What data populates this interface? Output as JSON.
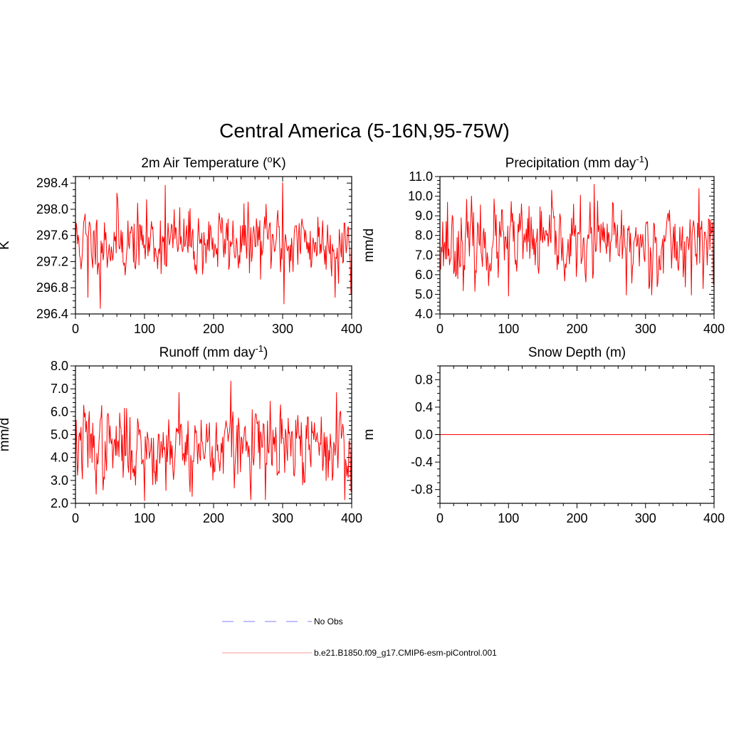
{
  "title": "Central America (5-16N,95-75W)",
  "line_color": "#ff0000",
  "obs_color": "#9999ff",
  "chart_data": [
    {
      "id": "temp",
      "type": "line",
      "title": "2m Air Temperature (",
      "title_sup": "o",
      "title_after": "K)",
      "ylabel": "K",
      "xlim": [
        0,
        400
      ],
      "ylim": [
        296.4,
        298.5
      ],
      "xticks": [
        0,
        100,
        200,
        300,
        400
      ],
      "yticks": [
        296.4,
        296.8,
        297.2,
        297.6,
        298.0,
        298.4
      ],
      "ytick_labels": [
        "296.4",
        "296.8",
        "297.2",
        "297.6",
        "298.0",
        "298.4"
      ],
      "yminor_step": 0.1,
      "seed": 11,
      "series": [
        {
          "name": "b.e21.B1850.f09_g17.CMIP6-esm-piControl.001",
          "mean": 297.5,
          "sd": 0.26,
          "min": 296.48,
          "max": 298.41,
          "peaks": [
            [
              36,
              296.48
            ],
            [
              130,
              298.37
            ],
            [
              300,
              298.41
            ],
            [
              302,
              296.55
            ],
            [
              18,
              296.65
            ],
            [
              376,
              296.65
            ],
            [
              399,
              296.7
            ],
            [
              60,
              298.25
            ]
          ]
        }
      ]
    },
    {
      "id": "precip",
      "type": "line",
      "title": "Precipitation (mm day",
      "title_sup": "-1",
      "title_after": ")",
      "ylabel": "mm/d",
      "xlim": [
        0,
        400
      ],
      "ylim": [
        4.0,
        11.0
      ],
      "xticks": [
        0,
        100,
        200,
        300,
        400
      ],
      "yticks": [
        4.0,
        5.0,
        6.0,
        7.0,
        8.0,
        9.0,
        10.0,
        11.0
      ],
      "ytick_labels": [
        "4.0",
        "5.0",
        "6.0",
        "7.0",
        "8.0",
        "9.0",
        "10.0",
        "11.0"
      ],
      "yminor_step": 0.2,
      "seed": 23,
      "series": [
        {
          "name": "b.e21.B1850.f09_g17.CMIP6-esm-piControl.001",
          "mean": 7.55,
          "sd": 0.95,
          "min": 4.9,
          "max": 10.62,
          "peaks": [
            [
              100,
              4.9
            ],
            [
              225,
              10.62
            ],
            [
              272,
              4.95
            ],
            [
              378,
              10.4
            ],
            [
              399,
              5.5
            ],
            [
              11,
              9.7
            ],
            [
              130,
              9.5
            ]
          ]
        }
      ]
    },
    {
      "id": "runoff",
      "type": "line",
      "title": "Runoff (mm day",
      "title_sup": "-1",
      "title_after": ")",
      "ylabel": "mm/d",
      "xlim": [
        0,
        400
      ],
      "ylim": [
        2.0,
        8.0
      ],
      "xticks": [
        0,
        100,
        200,
        300,
        400
      ],
      "yticks": [
        2.0,
        3.0,
        4.0,
        5.0,
        6.0,
        7.0,
        8.0
      ],
      "ytick_labels": [
        "2.0",
        "3.0",
        "4.0",
        "5.0",
        "6.0",
        "7.0",
        "8.0"
      ],
      "yminor_step": 0.2,
      "seed": 37,
      "series": [
        {
          "name": "b.e21.B1850.f09_g17.CMIP6-esm-piControl.001",
          "mean": 4.45,
          "sd": 0.85,
          "min": 2.1,
          "max": 7.35,
          "peaks": [
            [
              100,
              2.1
            ],
            [
              225,
              7.35
            ],
            [
              150,
              6.85
            ],
            [
              275,
              2.15
            ],
            [
              378,
              6.85
            ],
            [
              399,
              2.5
            ],
            [
              12,
              6.3
            ]
          ]
        }
      ]
    },
    {
      "id": "snow",
      "type": "line",
      "title": "Snow Depth (m)",
      "title_sup": "",
      "title_after": "",
      "ylabel": "m",
      "xlim": [
        0,
        400
      ],
      "ylim": [
        -1.0,
        1.0
      ],
      "xticks": [
        0,
        100,
        200,
        300,
        400
      ],
      "yticks": [
        -0.8,
        -0.4,
        0.0,
        0.4,
        0.8
      ],
      "ytick_labels": [
        "-0.8",
        "-0.4",
        "0.0",
        "0.4",
        "0.8"
      ],
      "yminor_step": 0.1,
      "seed": 0,
      "series": [
        {
          "name": "b.e21.B1850.f09_g17.CMIP6-esm-piControl.001",
          "constant": 0.0
        }
      ]
    }
  ],
  "legend": [
    {
      "label": "No Obs",
      "style": "dashed"
    },
    {
      "label": "b.e21.B1850.f09_g17.CMIP6-esm-piControl.001",
      "style": "solid"
    }
  ]
}
